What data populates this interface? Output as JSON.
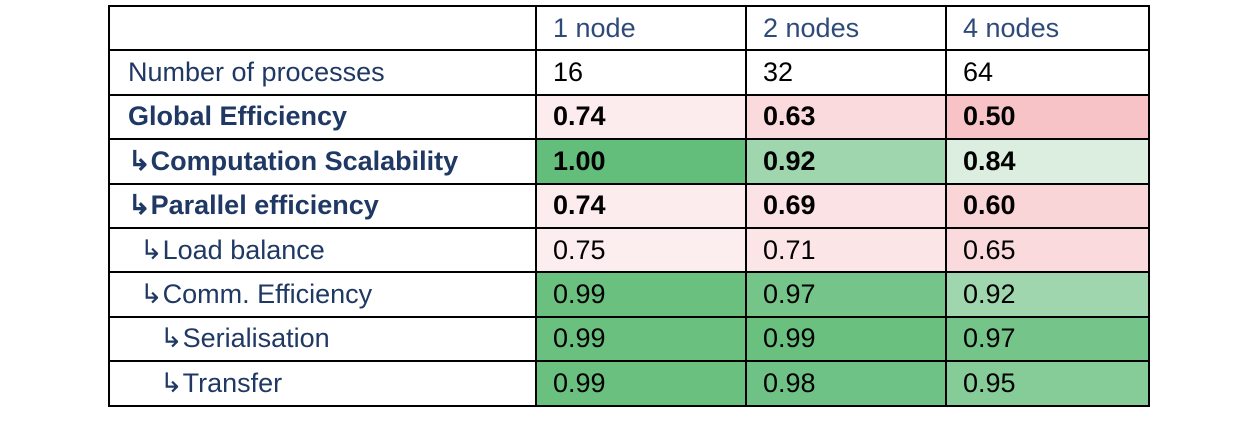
{
  "table": {
    "header": [
      "1 node",
      "2 nodes",
      "4 nodes"
    ],
    "rows": [
      {
        "label": "Number of processes",
        "values": [
          "16",
          "32",
          "64"
        ],
        "colors": [
          "#ffffff",
          "#ffffff",
          "#ffffff"
        ]
      },
      {
        "label": "Global Efficiency",
        "values": [
          "0.74",
          "0.63",
          "0.50"
        ],
        "colors": [
          "#fcecee",
          "#fbdadd",
          "#f8c3c6"
        ]
      },
      {
        "label": "↳Computation Scalability",
        "values": [
          "1.00",
          "0.92",
          "0.84"
        ],
        "colors": [
          "#63be7b",
          "#9fd6ae",
          "#dbeee0"
        ]
      },
      {
        "label": "↳Parallel efficiency",
        "values": [
          "0.74",
          "0.69",
          "0.60"
        ],
        "colors": [
          "#fcecee",
          "#fbe2e5",
          "#fad5d8"
        ]
      },
      {
        "label": "↳Load balance",
        "values": [
          "0.75",
          "0.71",
          "0.65"
        ],
        "colors": [
          "#fcedef",
          "#fbe5e7",
          "#fbdadd"
        ]
      },
      {
        "label": "↳Comm. Efficiency",
        "values": [
          "0.99",
          "0.97",
          "0.92"
        ],
        "colors": [
          "#69c07f",
          "#75c58a",
          "#9fd6ae"
        ]
      },
      {
        "label": "↳Serialisation",
        "values": [
          "0.99",
          "0.99",
          "0.97"
        ],
        "colors": [
          "#69c07f",
          "#69c07f",
          "#75c58a"
        ]
      },
      {
        "label": "↳Transfer",
        "values": [
          "0.99",
          "0.98",
          "0.95"
        ],
        "colors": [
          "#69c07f",
          "#6fc285",
          "#86cc98"
        ]
      }
    ]
  }
}
